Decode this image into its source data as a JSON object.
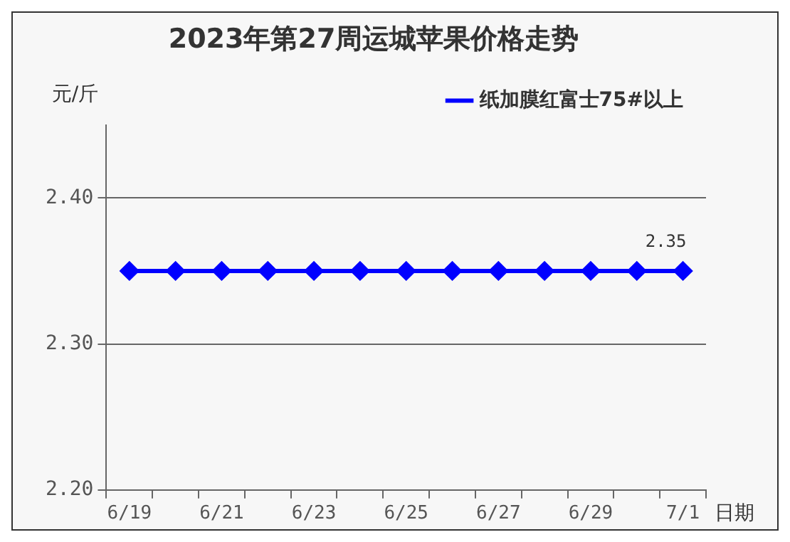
{
  "chart_data": {
    "type": "line",
    "title": "2023年第27周运城苹果价格走势",
    "xlabel": "日期",
    "ylabel": "元/斤",
    "categories": [
      "6/19",
      null,
      "6/21",
      null,
      "6/23",
      null,
      "6/25",
      null,
      "6/27",
      null,
      "6/29",
      null,
      "7/1"
    ],
    "series": [
      {
        "name": "纸加膜红富士75#以上",
        "color": "#0000ff",
        "values": [
          2.35,
          2.35,
          2.35,
          2.35,
          2.35,
          2.35,
          2.35,
          2.35,
          2.35,
          2.35,
          2.35,
          2.35,
          2.35
        ],
        "value_labels": [
          null,
          null,
          null,
          null,
          null,
          null,
          null,
          null,
          null,
          null,
          null,
          null,
          "2.35"
        ]
      }
    ],
    "ylim": [
      2.2,
      2.45
    ],
    "yticks": [
      {
        "value": 2.2,
        "label": "2.20"
      },
      {
        "value": 2.3,
        "label": "2.30"
      },
      {
        "value": 2.4,
        "label": "2.40"
      }
    ],
    "grid": "y",
    "legend": "top right",
    "marker": "diamond",
    "line_style": "solid"
  }
}
